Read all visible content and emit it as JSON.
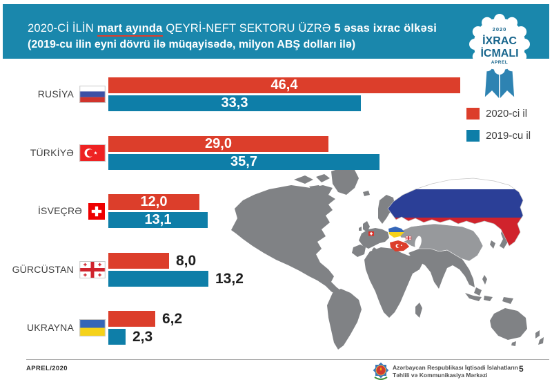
{
  "header": {
    "title_prefix": "2020-Cİ İLİN ",
    "title_underlined": "mart ayında",
    "title_middle": " QEYRİ-NEFT SEKTORU ÜZRƏ ",
    "title_bold": "5 əsas ixrac ölkəsi",
    "subtitle": "(2019-cu ilin eyni dövrü ilə müqayisədə, milyon ABŞ dolları ilə)",
    "background_color": "#1a87ac"
  },
  "badge": {
    "year": "2020",
    "title_line1": "İXRAC",
    "title_line2": "İCMALI",
    "month": "APREL"
  },
  "legend": {
    "items": [
      {
        "label": "2020-ci il",
        "color": "#dc3e2b"
      },
      {
        "label": "2019-cu il",
        "color": "#0e7ea8"
      }
    ]
  },
  "chart_data": {
    "type": "bar",
    "orientation": "horizontal",
    "title": "2020-ci ilin mart ayında qeyri-neft sektoru üzrə 5 əsas ixrac ölkəsi",
    "unit": "milyon ABŞ dolları ilə",
    "categories": [
      "RUSİYA",
      "TÜRKİYƏ",
      "İSVEÇRƏ",
      "GÜRCÜSTAN",
      "UKRAYNA"
    ],
    "series": [
      {
        "name": "2020-ci il",
        "color": "#dc3e2b",
        "values": [
          46.4,
          29.0,
          12.0,
          8.0,
          6.2
        ],
        "value_labels": [
          "46,4",
          "29,0",
          "12,0",
          "8,0",
          "6,2"
        ]
      },
      {
        "name": "2019-cu il",
        "color": "#0e7ea8",
        "values": [
          33.3,
          35.7,
          13.1,
          13.2,
          2.3
        ],
        "value_labels": [
          "33,3",
          "35,7",
          "13,1",
          "13,2",
          "2,3"
        ]
      }
    ],
    "value_labels_inside": [
      true,
      true,
      true,
      false,
      false
    ],
    "flags": [
      "ru",
      "tr",
      "ch",
      "ge",
      "ua"
    ],
    "xlim": [
      0,
      50
    ],
    "grid": false,
    "legend_position": "right-top"
  },
  "footer": {
    "left_label": "APREL/2020",
    "agency_line1": "Azərbaycan Respublikası İqtisadi İslahatların",
    "agency_line2": "Təhlili və Kommunikasiya Mərkəzi",
    "page_number": "5"
  }
}
